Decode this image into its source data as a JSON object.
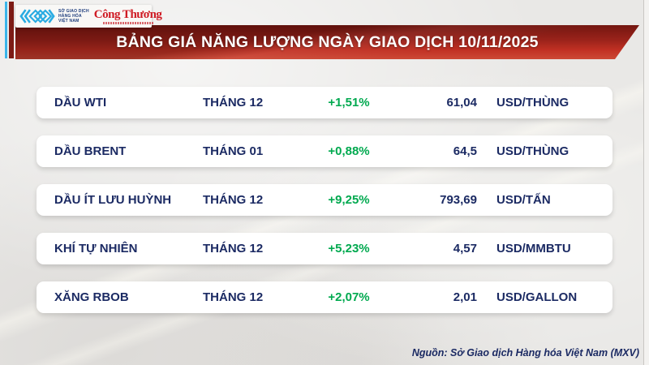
{
  "logos": {
    "mxv": {
      "text_lines": [
        "SỞ GIAO DỊCH",
        "HÀNG HÓA",
        "VIỆT NAM"
      ]
    },
    "congthuong": {
      "label": "Công Thương"
    }
  },
  "banner": {
    "title": "BẢNG GIÁ NĂNG LƯỢNG NGÀY GIAO DỊCH 10/11/2025",
    "date": "10/11/2025"
  },
  "chart_data": {
    "type": "table",
    "title": "BẢNG GIÁ NĂNG LƯỢNG NGÀY GIAO DỊCH 10/11/2025",
    "rows": [
      {
        "name": "DẦU WTI",
        "month": "THÁNG 12",
        "change": "+1,51%",
        "price": "61,04",
        "unit": "USD/THÙNG"
      },
      {
        "name": "DẦU BRENT",
        "month": "THÁNG 01",
        "change": "+0,88%",
        "price": "64,5",
        "unit": "USD/THÙNG"
      },
      {
        "name": "DẦU ÍT LƯU HUỲNH",
        "month": "THÁNG 12",
        "change": "+9,25%",
        "price": "793,69",
        "unit": "USD/TẤN"
      },
      {
        "name": "KHÍ TỰ NHIÊN",
        "month": "THÁNG 12",
        "change": "+5,23%",
        "price": "4,57",
        "unit": "USD/MMBTU"
      },
      {
        "name": "XĂNG RBOB",
        "month": "THÁNG 12",
        "change": "+2,07%",
        "price": "2,01",
        "unit": "USD/GALLON"
      }
    ]
  },
  "footer": {
    "source": "Nguồn: Sở Giao dịch Hàng hóa Việt Nam (MXV)"
  },
  "colors": {
    "accent_cyan": "#3ab5ea",
    "accent_dark_red": "#7d1b15",
    "banner_red_top": "#731610",
    "banner_red_bottom": "#cd4936",
    "positive_green": "#00a94f",
    "text_navy": "#1b2a63",
    "congthuong_red": "#cf1b24",
    "mxv_blue": "#29abe2",
    "background_gray": "#e9e8e6"
  }
}
